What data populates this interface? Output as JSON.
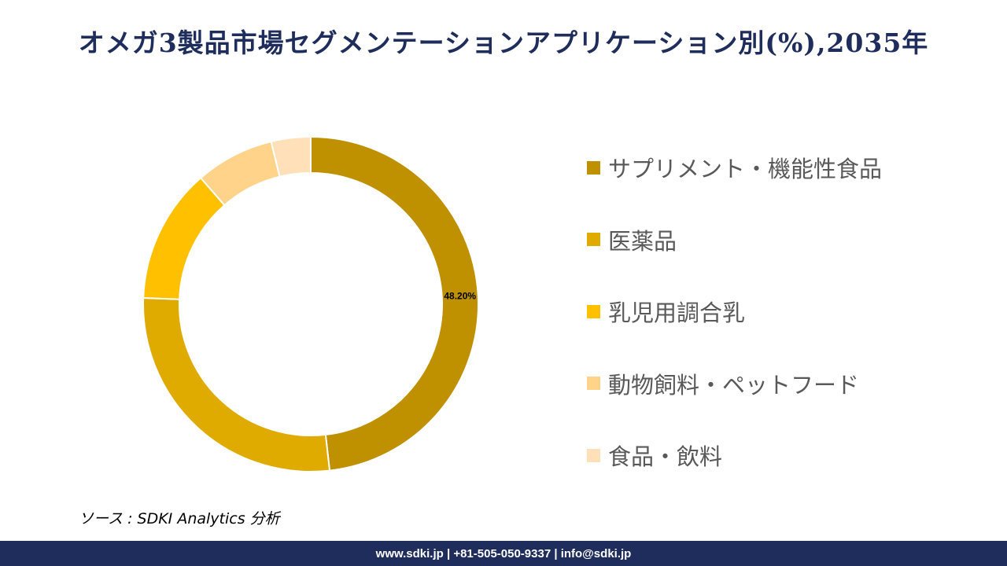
{
  "title": "オメガ3製品市場セグメンテーションアプリケーション別(%),2035年",
  "source": "ソース : SDKI Analytics 分析",
  "footer": "www.sdki.jp | +81-505-050-9337 | info@sdki.jp",
  "chart_data": {
    "type": "pie",
    "donut": true,
    "categories": [
      "サプリメント・機能性食品",
      "医薬品",
      "乳児用調合乳",
      "動物飼料・ペットフード",
      "食品・飲料"
    ],
    "values": [
      48.2,
      27.4,
      13.0,
      7.6,
      3.8
    ],
    "data_labels": [
      "48.20%",
      "",
      "",
      "",
      ""
    ],
    "colors": [
      "#bf9000",
      "#e0ab00",
      "#ffc000",
      "#ffd38a",
      "#ffe0b8"
    ],
    "legend_position": "right"
  }
}
